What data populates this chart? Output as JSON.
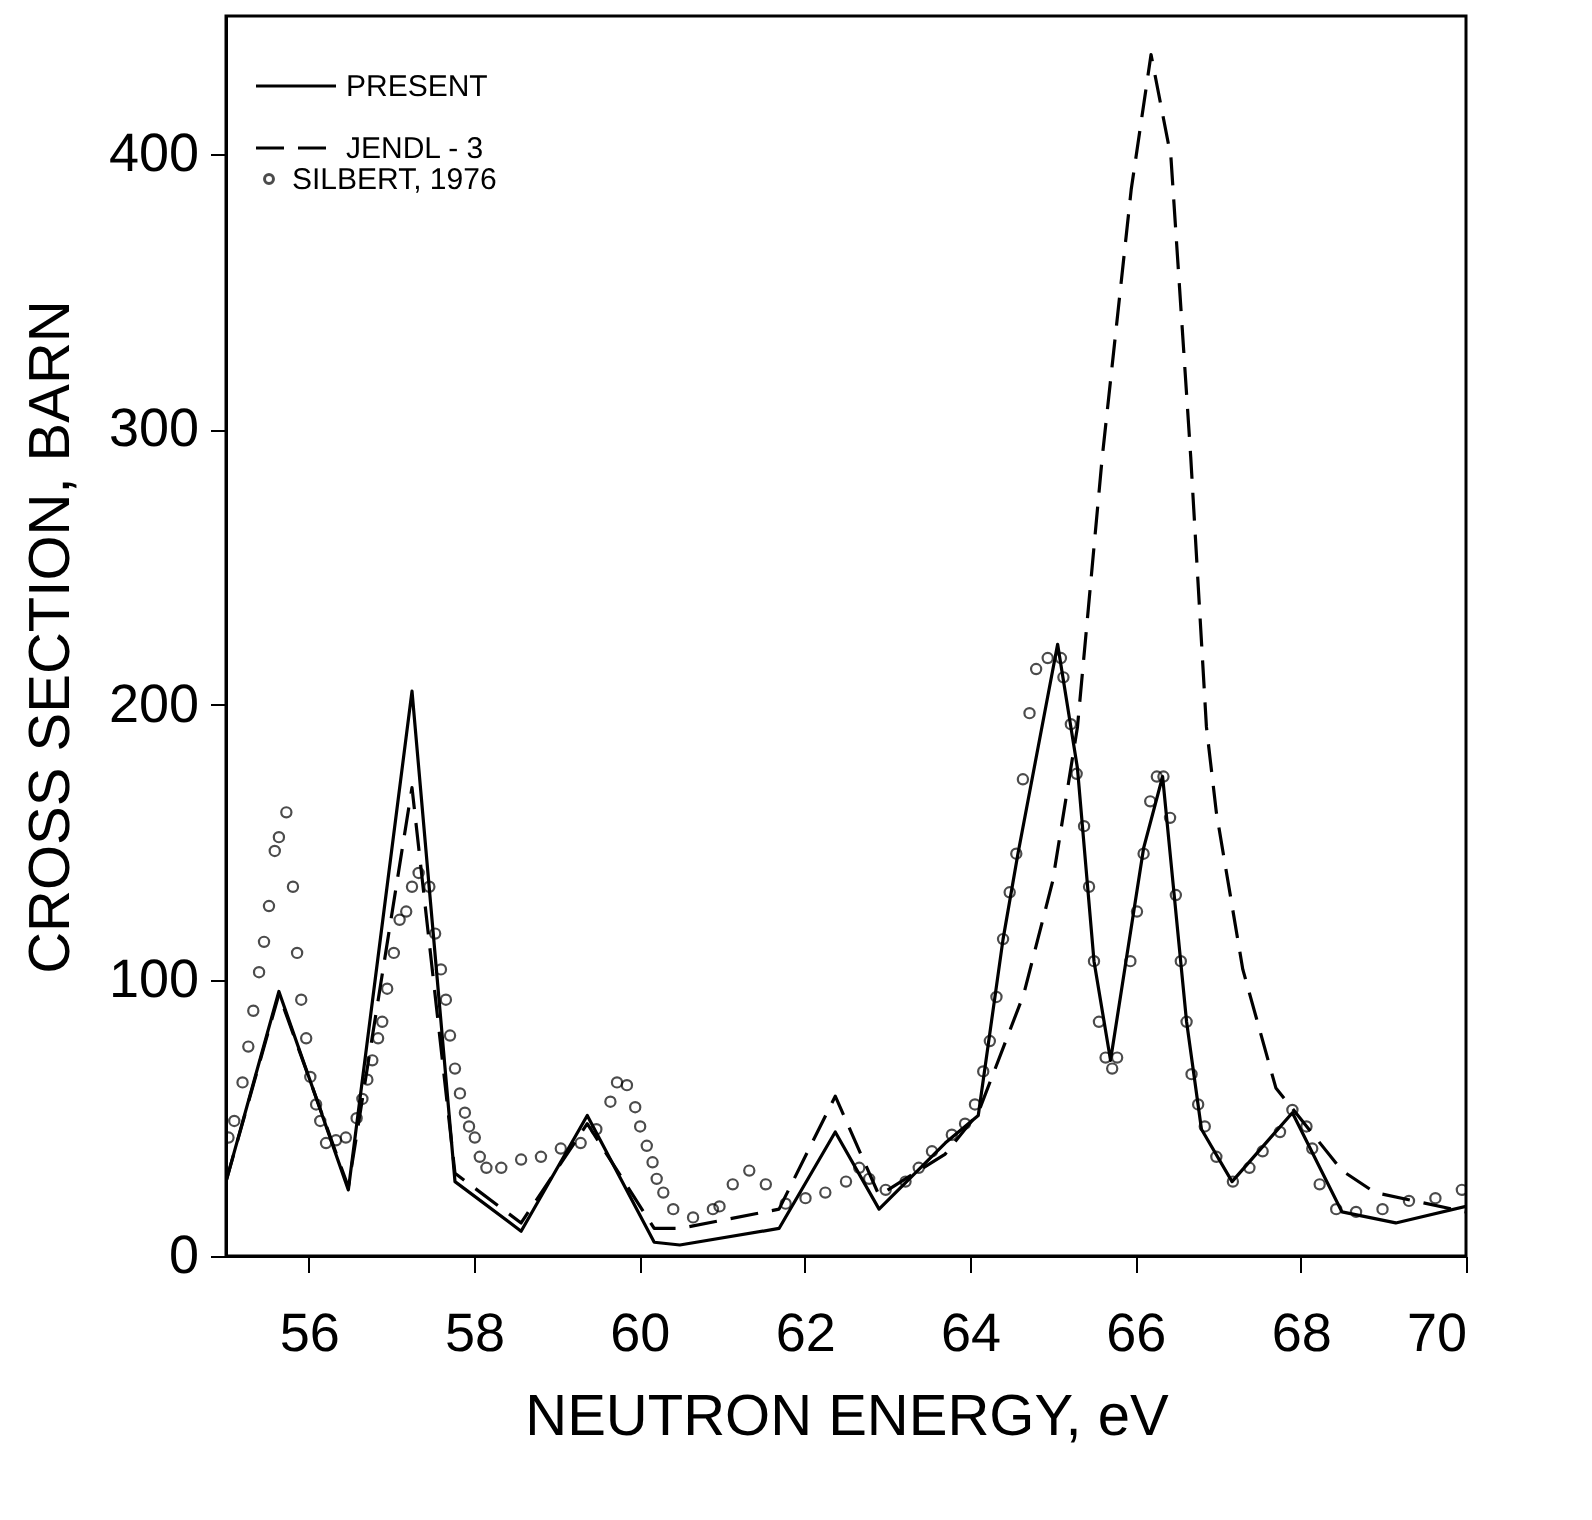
{
  "chart_data": {
    "type": "line",
    "xlabel": "NEUTRON ENERGY, eV",
    "ylabel": "CROSS SECTION, BARN",
    "xlim": [
      55,
      70
    ],
    "ylim": [
      0,
      450
    ],
    "xticks": [
      56,
      58,
      60,
      62,
      64,
      66,
      68,
      70
    ],
    "yticks": [
      0,
      100,
      200,
      300,
      400
    ],
    "legend": "top left",
    "series": [
      {
        "name": "PRESENT",
        "type": "line",
        "line_style": "solid",
        "color": "#000000",
        "x": [
          55,
          55.64,
          56.48,
          57.25,
          57.77,
          58.57,
          59.37,
          60.18,
          60.49,
          61.69,
          62.37,
          62.9,
          63.7,
          64.1,
          64.4,
          64.58,
          65.06,
          65.3,
          65.5,
          65.7,
          66.1,
          66.33,
          66.62,
          66.8,
          67.17,
          67.9,
          68.5,
          69.15,
          70
        ],
        "values": [
          27,
          96,
          24,
          205,
          27,
          9,
          51,
          5,
          4,
          10,
          45,
          17,
          41,
          51,
          115,
          146,
          222,
          177,
          107,
          71,
          148,
          174,
          85,
          46,
          27,
          52,
          16,
          12,
          18
        ]
      },
      {
        "name": "JENDL - 3",
        "type": "line",
        "line_style": "dashed",
        "color": "#000000",
        "x": [
          55,
          55.64,
          56.48,
          57.25,
          57.77,
          58.57,
          59.37,
          60.18,
          60.49,
          61.69,
          62.37,
          62.9,
          63.7,
          64.1,
          64.65,
          65.0,
          65.3,
          65.6,
          65.95,
          66.19,
          66.43,
          66.67,
          66.86,
          66.98,
          67.3,
          67.7,
          68.5,
          68.9,
          70
        ],
        "values": [
          27,
          95,
          25,
          170,
          30,
          12,
          48,
          10,
          10,
          17,
          58,
          22,
          37,
          52,
          95,
          136,
          192,
          290,
          387,
          436,
          399,
          290,
          192,
          161,
          104,
          61,
          31,
          23,
          16
        ]
      },
      {
        "name": "SILBERT, 1976",
        "type": "scatter",
        "marker": "circle",
        "color": "#000000",
        "x": [
          55.03,
          55.1,
          55.2,
          55.27,
          55.33,
          55.4,
          55.46,
          55.52,
          55.59,
          55.64,
          55.73,
          55.81,
          55.86,
          55.91,
          55.97,
          56.02,
          56.09,
          56.14,
          56.21,
          56.33,
          56.45,
          56.58,
          56.65,
          56.71,
          56.77,
          56.84,
          56.89,
          56.95,
          57.03,
          57.1,
          57.18,
          57.25,
          57.33,
          57.46,
          57.53,
          57.6,
          57.66,
          57.71,
          57.77,
          57.83,
          57.89,
          57.94,
          58.01,
          58.07,
          58.15,
          58.33,
          58.57,
          58.81,
          59.05,
          59.29,
          59.48,
          59.65,
          59.73,
          59.85,
          59.95,
          60.01,
          60.09,
          60.16,
          60.21,
          60.29,
          60.41,
          60.65,
          60.89,
          60.97,
          61.13,
          61.33,
          61.53,
          61.77,
          62.01,
          62.25,
          62.5,
          62.66,
          62.78,
          62.98,
          63.22,
          63.38,
          63.54,
          63.78,
          63.94,
          64.06,
          64.16,
          64.24,
          64.32,
          64.4,
          64.48,
          64.56,
          64.64,
          64.72,
          64.8,
          64.94,
          65.1,
          65.13,
          65.22,
          65.29,
          65.38,
          65.44,
          65.5,
          65.56,
          65.64,
          65.72,
          65.78,
          65.94,
          66.02,
          66.1,
          66.18,
          66.26,
          66.34,
          66.42,
          66.49,
          66.55,
          66.62,
          66.68,
          66.76,
          66.84,
          66.98,
          67.18,
          67.38,
          67.54,
          67.75,
          67.9,
          68.07,
          68.14,
          68.23,
          68.43,
          68.67,
          68.99,
          69.31,
          69.63,
          69.95
        ],
        "values": [
          43,
          49,
          63,
          76,
          89,
          103,
          114,
          127,
          147,
          152,
          161,
          134,
          110,
          93,
          79,
          65,
          55,
          49,
          41,
          42,
          43,
          50,
          57,
          64,
          71,
          79,
          85,
          97,
          110,
          122,
          125,
          134,
          139,
          134,
          117,
          104,
          93,
          80,
          68,
          59,
          52,
          47,
          43,
          36,
          32,
          32,
          35,
          36,
          39,
          41,
          46,
          56,
          63,
          62,
          54,
          47,
          40,
          34,
          28,
          23,
          17,
          14,
          17,
          18,
          26,
          31,
          26,
          19,
          21,
          23,
          27,
          32,
          28,
          24,
          27,
          32,
          38,
          44,
          48,
          55,
          67,
          78,
          94,
          115,
          132,
          146,
          173,
          197,
          213,
          217,
          217,
          210,
          193,
          175,
          156,
          134,
          107,
          85,
          72,
          68,
          72,
          107,
          125,
          146,
          165,
          174,
          174,
          159,
          131,
          107,
          85,
          66,
          55,
          47,
          36,
          27,
          32,
          38,
          45,
          53,
          47,
          39,
          26,
          17,
          16,
          17,
          20,
          21,
          24
        ]
      }
    ]
  }
}
